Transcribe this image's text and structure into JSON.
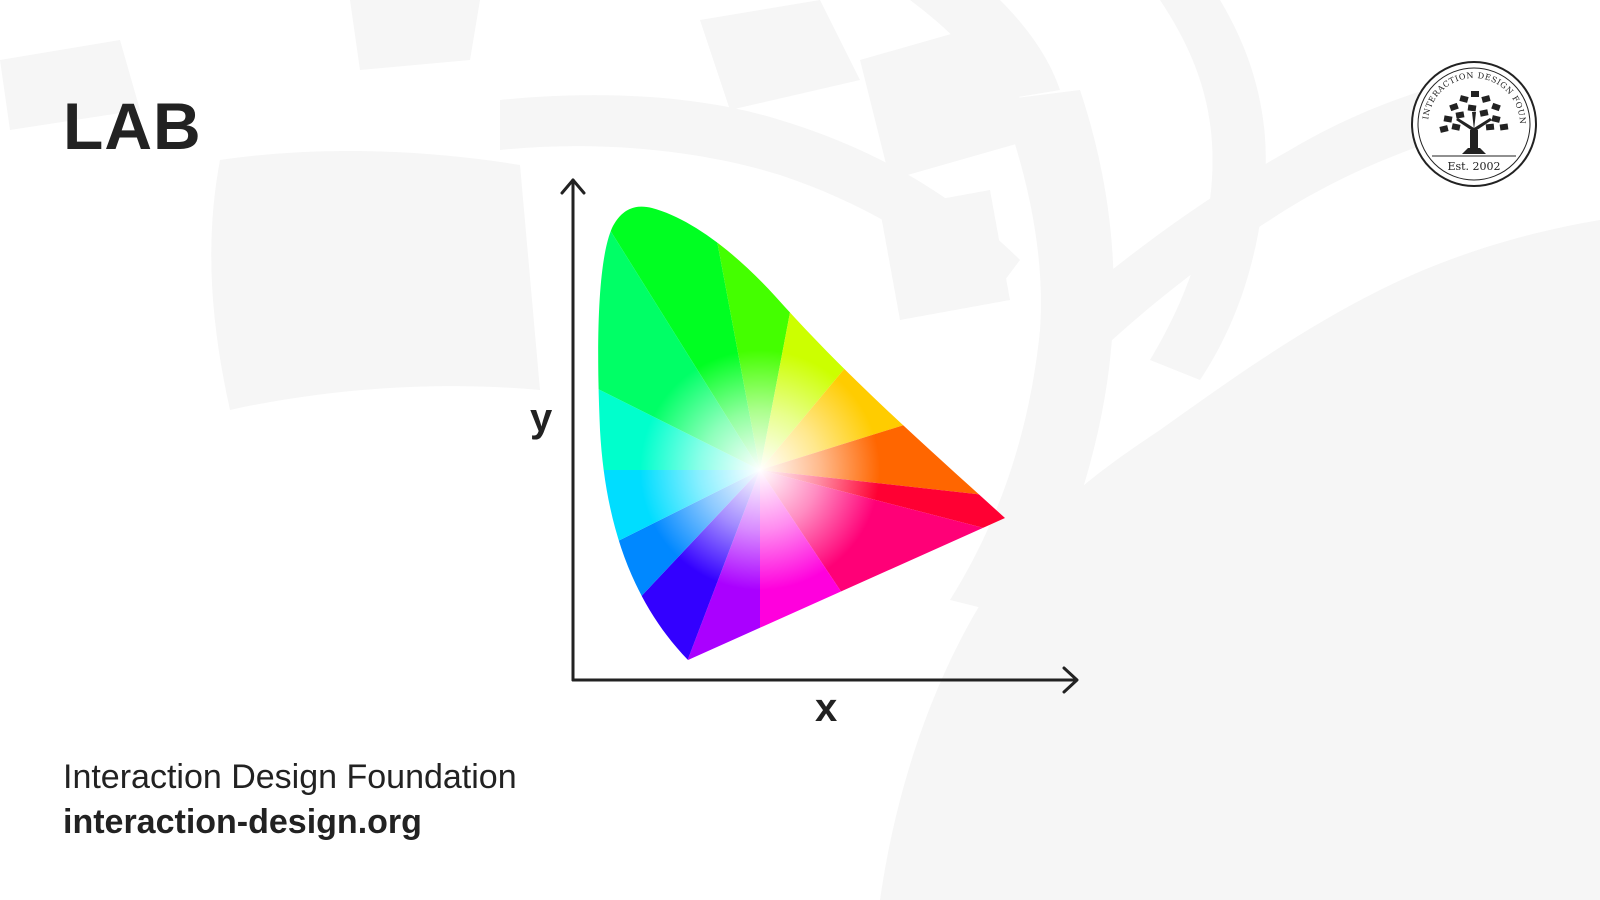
{
  "title": "LAB",
  "diagram": {
    "x_label": "x",
    "y_label": "y"
  },
  "footer": {
    "org_name": "Interaction Design Foundation",
    "url": "interaction-design.org"
  },
  "logo": {
    "text": "INTERACTION DESIGN FOUNDATION",
    "established": "Est. 2002"
  },
  "colors": {
    "text": "#222222",
    "background": "#ffffff",
    "watermark": "#f6f6f6",
    "gamut_green": "#00ff00",
    "gamut_cyan": "#00ffff",
    "gamut_blue": "#4400ff",
    "gamut_magenta": "#ff00ff",
    "gamut_red": "#ff0033",
    "gamut_yellow": "#ffff00",
    "gamut_white": "#ffffff"
  }
}
